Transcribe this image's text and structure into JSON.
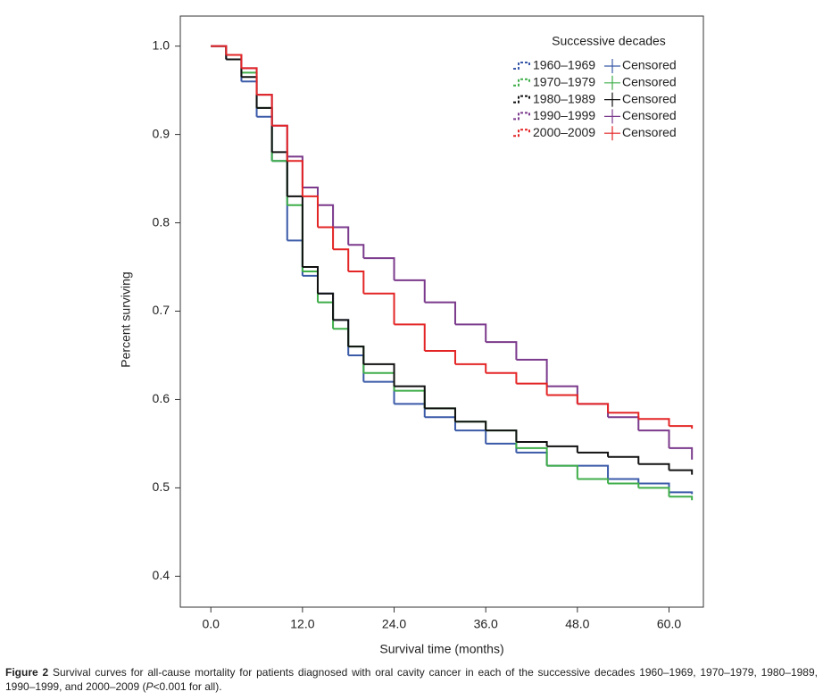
{
  "chart_data": {
    "type": "step",
    "xlabel": "Survival time (months)",
    "ylabel": "Percent surviving",
    "legend_title": "Successive decades",
    "xlim": [
      -4,
      64.5
    ],
    "ylim": [
      0.365,
      1.034
    ],
    "xticks": [
      {
        "value": 0,
        "label": "0.0"
      },
      {
        "value": 12,
        "label": "12.0"
      },
      {
        "value": 24,
        "label": "24.0"
      },
      {
        "value": 36,
        "label": "36.0"
      },
      {
        "value": 48,
        "label": "48.0"
      },
      {
        "value": 60,
        "label": "60.0"
      }
    ],
    "yticks": [
      {
        "value": 1.0,
        "label": "1.0"
      },
      0.9,
      0.8,
      0.7,
      0.6,
      0.5,
      0.4
    ],
    "x": [
      0,
      2,
      4,
      6,
      8,
      10,
      12,
      14,
      16,
      18,
      20,
      24,
      28,
      32,
      36,
      40,
      44,
      48,
      52,
      56,
      60,
      63
    ],
    "series": [
      {
        "name": "1960–1969",
        "censored_label": "Censored",
        "color": "#3a5aa8",
        "values": [
          1.0,
          0.985,
          0.96,
          0.92,
          0.87,
          0.78,
          0.74,
          0.72,
          0.69,
          0.65,
          0.62,
          0.595,
          0.58,
          0.565,
          0.55,
          0.54,
          0.525,
          0.525,
          0.51,
          0.505,
          0.495,
          0.493
        ]
      },
      {
        "name": "1970–1979",
        "censored_label": "Censored",
        "color": "#3fae49",
        "values": [
          1.0,
          0.99,
          0.97,
          0.93,
          0.87,
          0.82,
          0.745,
          0.71,
          0.68,
          0.66,
          0.63,
          0.61,
          0.59,
          0.575,
          0.565,
          0.545,
          0.525,
          0.51,
          0.505,
          0.5,
          0.49,
          0.486
        ]
      },
      {
        "name": "1980–1989",
        "censored_label": "Censored",
        "color": "#111111",
        "values": [
          1.0,
          0.985,
          0.965,
          0.93,
          0.88,
          0.83,
          0.75,
          0.72,
          0.69,
          0.66,
          0.64,
          0.615,
          0.59,
          0.575,
          0.565,
          0.552,
          0.547,
          0.54,
          0.535,
          0.527,
          0.52,
          0.515
        ]
      },
      {
        "name": "1990–1999",
        "censored_label": "Censored",
        "color": "#7b3a8c",
        "values": [
          1.0,
          0.99,
          0.975,
          0.945,
          0.91,
          0.875,
          0.84,
          0.82,
          0.795,
          0.775,
          0.76,
          0.735,
          0.71,
          0.685,
          0.665,
          0.645,
          0.615,
          0.595,
          0.58,
          0.565,
          0.545,
          0.532
        ]
      },
      {
        "name": "2000–2009",
        "censored_label": "Censored",
        "color": "#e42526",
        "values": [
          1.0,
          0.99,
          0.975,
          0.945,
          0.91,
          0.87,
          0.83,
          0.795,
          0.77,
          0.745,
          0.72,
          0.685,
          0.655,
          0.64,
          0.63,
          0.618,
          0.605,
          0.595,
          0.585,
          0.578,
          0.57,
          0.567
        ]
      }
    ]
  },
  "caption": {
    "label": "Figure 2",
    "text_before": "Survival curves for all-cause mortality for patients diagnosed with oral cavity cancer in each of the successive decades 1960–1969, 1970–1979, 1980–1989, 1990–1999, and 2000–2009 (",
    "italic": "P",
    "text_after": "<0.001 for all)."
  }
}
